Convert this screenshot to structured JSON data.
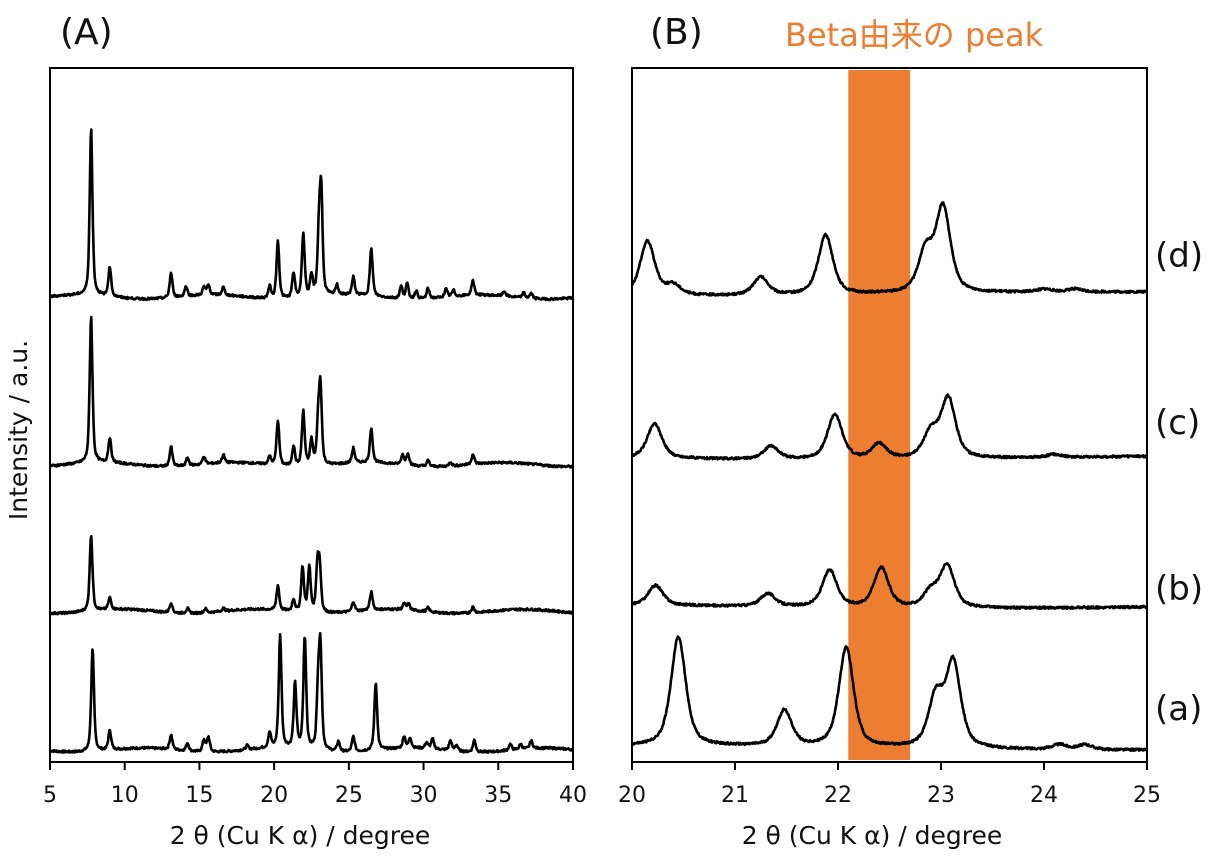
{
  "chart_data": [
    {
      "type": "line",
      "panel_label": "(A)",
      "xlabel": "2 θ (Cu K α) / degree",
      "ylabel": "Intensity / a.u.",
      "xlim": [
        5,
        40
      ],
      "ylim": [
        0,
        700
      ],
      "xticks": [
        "5",
        "10",
        "15",
        "20",
        "25",
        "30",
        "35",
        "40"
      ],
      "grid": false,
      "peak_width_deg": 0.22,
      "series": [
        {
          "name": "(a)",
          "offset": 12,
          "peaks": [
            [
              7.85,
              103
            ],
            [
              9.0,
              20
            ],
            [
              13.1,
              15
            ],
            [
              14.2,
              8
            ],
            [
              15.3,
              12
            ],
            [
              15.6,
              15
            ],
            [
              18.2,
              4
            ],
            [
              19.7,
              15
            ],
            [
              20.4,
              113
            ],
            [
              21.4,
              65
            ],
            [
              22.05,
              113
            ],
            [
              22.95,
              60
            ],
            [
              23.1,
              95
            ],
            [
              24.3,
              10
            ],
            [
              25.3,
              15
            ],
            [
              26.8,
              68
            ],
            [
              28.7,
              12
            ],
            [
              29.1,
              10
            ],
            [
              30.2,
              6
            ],
            [
              30.6,
              10
            ],
            [
              31.8,
              10
            ],
            [
              32.2,
              6
            ],
            [
              33.4,
              12
            ],
            [
              35.8,
              6
            ],
            [
              36.5,
              5
            ],
            [
              37.2,
              8
            ]
          ]
        },
        {
          "name": "(b)",
          "offset": 152,
          "peaks": [
            [
              7.75,
              77
            ],
            [
              9.0,
              12
            ],
            [
              13.1,
              10
            ],
            [
              14.2,
              5
            ],
            [
              15.4,
              4
            ],
            [
              16.6,
              3
            ],
            [
              20.25,
              25
            ],
            [
              21.3,
              12
            ],
            [
              21.9,
              45
            ],
            [
              22.35,
              45
            ],
            [
              22.9,
              45
            ],
            [
              23.05,
              42
            ],
            [
              25.3,
              10
            ],
            [
              26.5,
              18
            ],
            [
              28.7,
              6
            ],
            [
              29.0,
              6
            ],
            [
              30.3,
              4
            ],
            [
              33.3,
              6
            ]
          ]
        },
        {
          "name": "(c)",
          "offset": 300,
          "peaks": [
            [
              7.75,
              148
            ],
            [
              9.0,
              25
            ],
            [
              13.1,
              20
            ],
            [
              14.2,
              8
            ],
            [
              15.3,
              8
            ],
            [
              16.6,
              8
            ],
            [
              19.7,
              8
            ],
            [
              20.25,
              45
            ],
            [
              21.3,
              20
            ],
            [
              21.95,
              55
            ],
            [
              22.5,
              25
            ],
            [
              22.95,
              40
            ],
            [
              23.1,
              75
            ],
            [
              25.3,
              15
            ],
            [
              26.5,
              35
            ],
            [
              28.6,
              10
            ],
            [
              28.95,
              12
            ],
            [
              30.3,
              6
            ],
            [
              31.8,
              4
            ],
            [
              33.3,
              10
            ]
          ]
        },
        {
          "name": "(d)",
          "offset": 469,
          "peaks": [
            [
              7.75,
              168
            ],
            [
              9.0,
              30
            ],
            [
              13.1,
              25
            ],
            [
              14.1,
              10
            ],
            [
              15.3,
              8
            ],
            [
              15.6,
              10
            ],
            [
              16.6,
              8
            ],
            [
              19.7,
              12
            ],
            [
              20.25,
              58
            ],
            [
              21.3,
              25
            ],
            [
              21.95,
              65
            ],
            [
              22.5,
              20
            ],
            [
              23.0,
              60
            ],
            [
              23.15,
              100
            ],
            [
              24.2,
              10
            ],
            [
              25.3,
              18
            ],
            [
              26.5,
              48
            ],
            [
              28.5,
              12
            ],
            [
              28.9,
              15
            ],
            [
              29.5,
              8
            ],
            [
              30.3,
              10
            ],
            [
              31.5,
              8
            ],
            [
              32.0,
              6
            ],
            [
              33.3,
              15
            ],
            [
              35.4,
              5
            ],
            [
              36.7,
              5
            ],
            [
              37.2,
              5
            ]
          ]
        }
      ]
    },
    {
      "type": "line",
      "panel_label": "(B)",
      "annotation": "Beta由来の peak",
      "highlight_range": [
        22.1,
        22.7
      ],
      "highlight_color": "#ED7D31",
      "xlabel": "2 θ (Cu K α) / degree",
      "xlim": [
        20,
        25
      ],
      "ylim": [
        0,
        700
      ],
      "xticks": [
        "20",
        "21",
        "22",
        "23",
        "24",
        "25"
      ],
      "grid": false,
      "peak_width_deg": 0.17,
      "series": [
        {
          "name": "(a)",
          "offset": 14,
          "peaks": [
            [
              20.45,
              110
            ],
            [
              21.48,
              36
            ],
            [
              22.08,
              100
            ],
            [
              22.95,
              50
            ],
            [
              23.12,
              85
            ],
            [
              24.15,
              5
            ],
            [
              24.4,
              5
            ]
          ]
        },
        {
          "name": "(b)",
          "offset": 157,
          "peaks": [
            [
              20.23,
              20
            ],
            [
              21.32,
              13
            ],
            [
              21.92,
              37
            ],
            [
              22.42,
              40
            ],
            [
              22.9,
              15
            ],
            [
              23.06,
              42
            ]
          ]
        },
        {
          "name": "(c)",
          "offset": 307,
          "peaks": [
            [
              20.22,
              35
            ],
            [
              21.35,
              13
            ],
            [
              21.97,
              45
            ],
            [
              22.4,
              15
            ],
            [
              22.9,
              25
            ],
            [
              23.07,
              60
            ],
            [
              24.1,
              3
            ]
          ]
        },
        {
          "name": "(d)",
          "offset": 472,
          "peaks": [
            [
              20.15,
              55
            ],
            [
              20.4,
              10
            ],
            [
              21.25,
              18
            ],
            [
              21.88,
              60
            ],
            [
              22.85,
              40
            ],
            [
              23.02,
              85
            ],
            [
              24.0,
              3
            ],
            [
              24.3,
              3
            ]
          ]
        }
      ]
    }
  ]
}
